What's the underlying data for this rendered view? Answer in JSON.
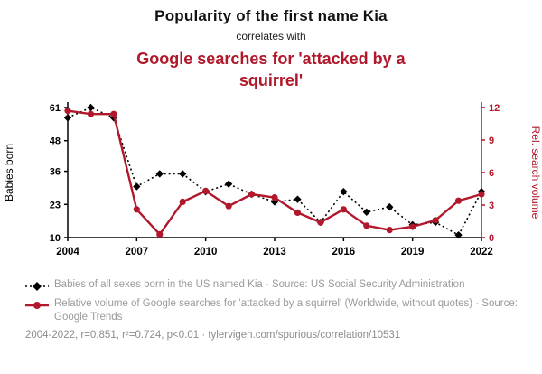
{
  "header": {
    "title": "Popularity of the first name Kia",
    "connector": "correlates with",
    "subtitle": "Google searches for 'attacked by a squirrel'"
  },
  "colors": {
    "accent_red": "#b2182b",
    "series_black": "#000000",
    "legend_gray": "#9a9a9a"
  },
  "chart_data": {
    "type": "line",
    "x": [
      2004,
      2005,
      2006,
      2007,
      2008,
      2009,
      2010,
      2011,
      2012,
      2013,
      2014,
      2015,
      2016,
      2017,
      2018,
      2019,
      2020,
      2021,
      2022
    ],
    "x_ticks": [
      2004,
      2007,
      2010,
      2013,
      2016,
      2019,
      2022
    ],
    "left_axis": {
      "label": "Babies born",
      "min": 10,
      "max": 61,
      "ticks": [
        61,
        48,
        36,
        23,
        10
      ]
    },
    "right_axis": {
      "label": "Rel. search volume",
      "min": 0,
      "max": 12,
      "ticks": [
        12,
        9,
        6,
        3,
        0
      ]
    },
    "grid": false,
    "legend_position": "below",
    "series": [
      {
        "name": "Babies of all sexes born in the US named Kia",
        "axis": "left",
        "color": "#000000",
        "marker": "diamond",
        "line": "dotted",
        "values": [
          57,
          61,
          57,
          30,
          35,
          35,
          28,
          31,
          27,
          24,
          25,
          16,
          28,
          20,
          22,
          15,
          16,
          11,
          28
        ]
      },
      {
        "name": "Relative volume of Google searches for 'attacked by a squirrel'",
        "axis": "right",
        "color": "#b2182b",
        "marker": "circle",
        "line": "solid",
        "values": [
          11.7,
          11.4,
          11.4,
          2.6,
          0.3,
          3.3,
          4.3,
          2.9,
          4.0,
          3.7,
          2.3,
          1.4,
          2.6,
          1.1,
          0.7,
          1.0,
          1.6,
          3.4,
          4.0
        ]
      }
    ]
  },
  "legend": [
    {
      "label": "Babies of all sexes born in the US named Kia · Source: US Social Security Administration"
    },
    {
      "label": "Relative volume of Google searches for 'attacked by a squirrel' (Worldwide, without quotes) · Source: Google Trends"
    }
  ],
  "footer": "2004-2022, r=0.851, r²=0.724, p<0.01 · tylervigen.com/spurious/correlation/10531"
}
